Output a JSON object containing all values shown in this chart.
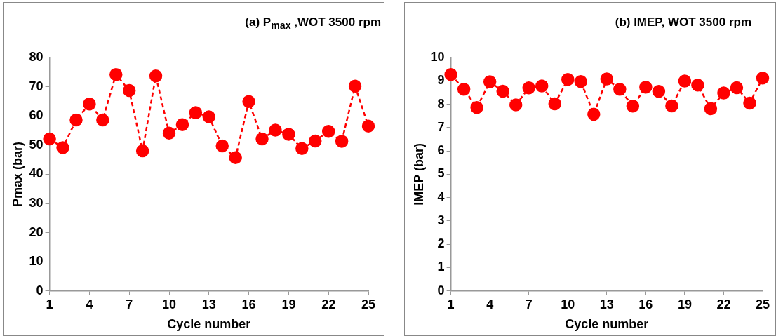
{
  "chart_data": [
    {
      "type": "line",
      "title": "(a) P$_{max}$ ,WOT 3500 rpm",
      "xlabel": "Cycle number",
      "ylabel": "Pmax (bar)",
      "x": [
        1,
        2,
        3,
        4,
        5,
        6,
        7,
        8,
        9,
        10,
        11,
        12,
        13,
        14,
        15,
        16,
        17,
        18,
        19,
        20,
        21,
        22,
        23,
        24,
        25
      ],
      "series": [
        {
          "color": "#ff0000",
          "values": [
            52.1,
            49.1,
            58.6,
            64.1,
            58.6,
            74.2,
            68.7,
            48.0,
            73.7,
            54.1,
            57.0,
            61.1,
            59.7,
            49.7,
            45.7,
            64.9,
            52.1,
            55.1,
            53.7,
            48.8,
            51.4,
            54.7,
            51.3,
            70.2,
            56.5
          ]
        }
      ],
      "xlim": [
        1,
        25
      ],
      "xticks": [
        1,
        4,
        7,
        10,
        13,
        16,
        19,
        22,
        25
      ],
      "ylim": [
        0,
        80
      ],
      "yticks": [
        0,
        10,
        20,
        30,
        40,
        50,
        60,
        70,
        80
      ],
      "grid": false,
      "legend": false,
      "marker": "circle",
      "line_style": "dashed"
    },
    {
      "type": "line",
      "title": "(b) IMEP, WOT 3500 rpm",
      "xlabel": "Cycle number",
      "ylabel": "IMEP (bar)",
      "x": [
        1,
        2,
        3,
        4,
        5,
        6,
        7,
        8,
        9,
        10,
        11,
        12,
        13,
        14,
        15,
        16,
        17,
        18,
        19,
        20,
        21,
        22,
        23,
        24,
        25
      ],
      "series": [
        {
          "color": "#ff0000",
          "values": [
            9.27,
            8.64,
            7.86,
            8.96,
            8.56,
            7.97,
            8.7,
            8.78,
            8.02,
            9.06,
            8.97,
            7.57,
            9.08,
            8.64,
            7.92,
            8.73,
            8.55,
            7.93,
            8.99,
            8.82,
            7.81,
            8.48,
            8.71,
            8.05,
            9.12
          ]
        }
      ],
      "xlim": [
        1,
        25
      ],
      "xticks": [
        1,
        4,
        7,
        10,
        13,
        16,
        19,
        22,
        25
      ],
      "ylim": [
        0,
        10
      ],
      "yticks": [
        0,
        1,
        2,
        3,
        4,
        5,
        6,
        7,
        8,
        9,
        10
      ],
      "grid": false,
      "legend": false,
      "marker": "circle",
      "line_style": "dashed"
    }
  ]
}
